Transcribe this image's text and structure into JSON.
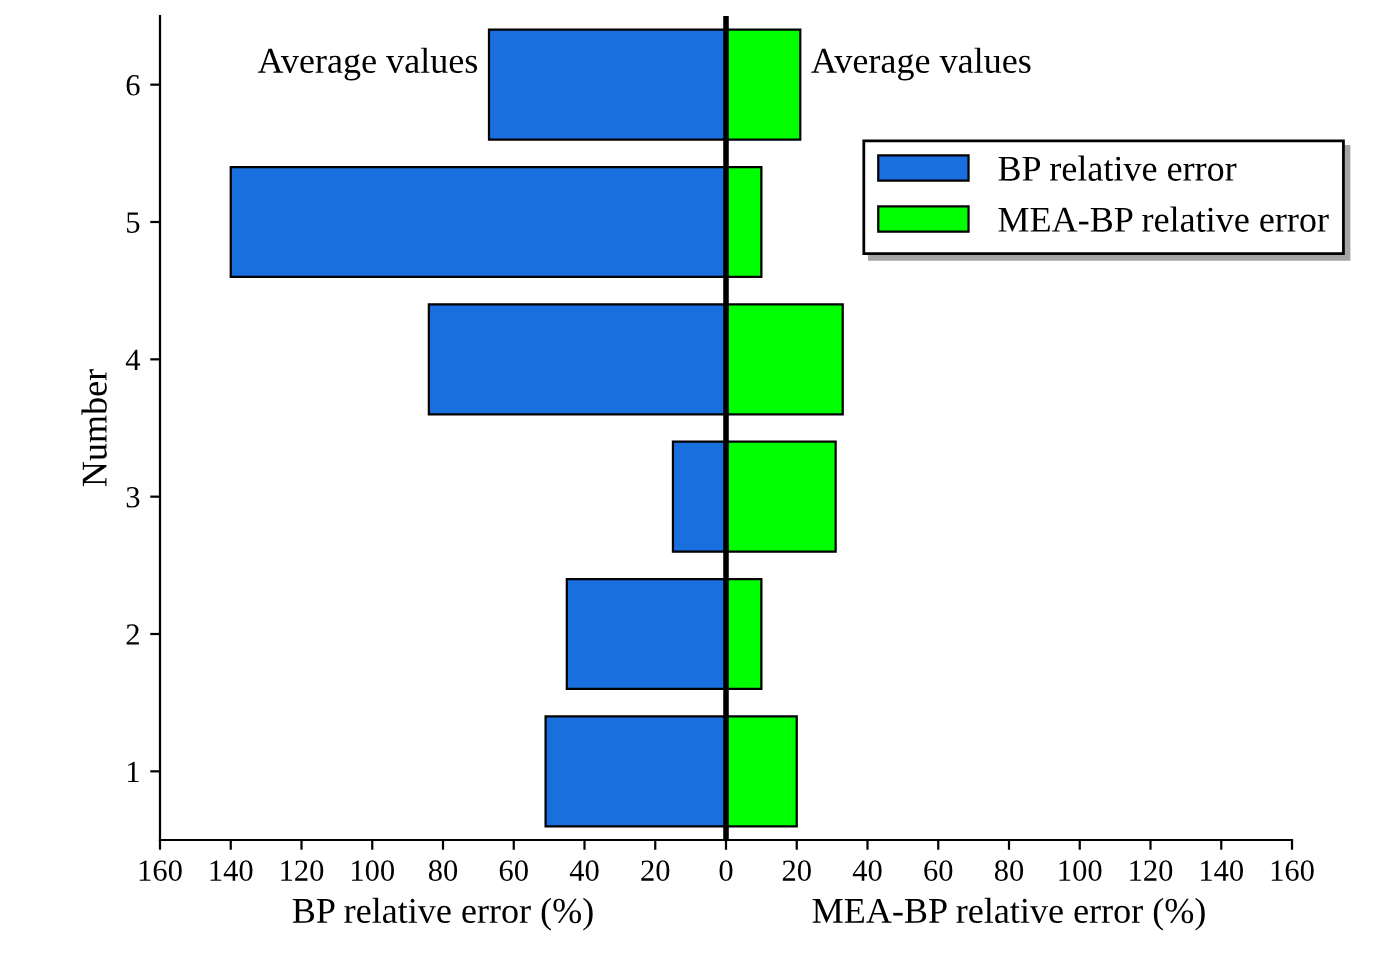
{
  "chart_data": {
    "type": "bar",
    "orientation": "horizontal",
    "stacked": true,
    "categories": [
      "6",
      "5",
      "4",
      "3",
      "2",
      "1"
    ],
    "series": [
      {
        "name": "BP relative error",
        "color": "#1a6fdf",
        "values": [
          -67,
          -140,
          -84,
          -15,
          -45,
          -51
        ]
      },
      {
        "name": "MEA-BP relative error",
        "color": "#00ff00",
        "values": [
          21,
          10,
          33,
          31,
          10,
          20
        ]
      }
    ],
    "xlim": [
      -160,
      160
    ],
    "xticks": [
      {
        "value": -160,
        "label": "160"
      },
      {
        "value": -140,
        "label": "140"
      },
      {
        "value": -120,
        "label": "120"
      },
      {
        "value": -100,
        "label": "100"
      },
      {
        "value": -80,
        "label": "80"
      },
      {
        "value": -60,
        "label": "60"
      },
      {
        "value": -40,
        "label": "40"
      },
      {
        "value": -20,
        "label": "20"
      },
      0,
      20,
      40,
      60,
      80,
      100,
      120,
      140,
      160
    ],
    "xlabel": "BP relative error (%)",
    "ylabel": "Number",
    "annotations": [
      {
        "text": "Average values",
        "x": -67,
        "y": "6"
      },
      {
        "text": "Average values",
        "x": 21,
        "y": "6"
      },
      "MEA-BP relative error (%)"
    ],
    "ref_lines": [
      {
        "axis": "x",
        "value": 0,
        "color": "#000000"
      }
    ],
    "legend": "right",
    "grid": false
  }
}
